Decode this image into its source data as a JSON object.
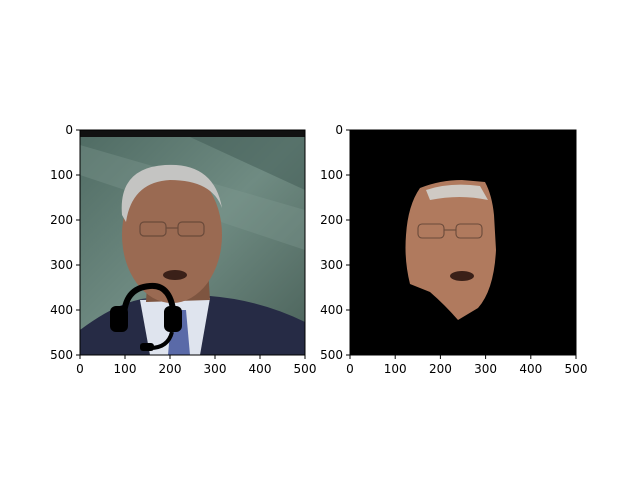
{
  "chart_data": [
    {
      "type": "image",
      "panel": "left",
      "content": "photo of a man in a suit and tie at a podium with a drawn black headset over the lower face",
      "xlim": [
        0,
        500
      ],
      "ylim": [
        500,
        0
      ],
      "xticks": [
        "0",
        "100",
        "200",
        "300",
        "400",
        "500"
      ],
      "yticks": [
        "0",
        "100",
        "200",
        "300",
        "400",
        "500"
      ],
      "grid": false,
      "colors": {
        "background": "#5e7a72",
        "suit": "#262b45",
        "skin": "#9a6a52",
        "headset": "#000000"
      }
    },
    {
      "type": "image",
      "panel": "right",
      "content": "segmented face mask on black background",
      "xlim": [
        0,
        500
      ],
      "ylim": [
        500,
        0
      ],
      "xticks": [
        "0",
        "100",
        "200",
        "300",
        "400",
        "500"
      ],
      "yticks": [
        "0",
        "100",
        "200",
        "300",
        "400",
        "500"
      ],
      "grid": false,
      "colors": {
        "background": "#000000",
        "skin": "#b07a5e"
      }
    }
  ]
}
